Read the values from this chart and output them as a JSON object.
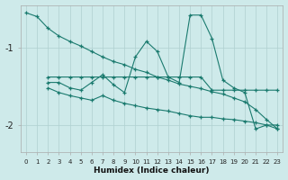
{
  "xlabel": "Humidex (Indice chaleur)",
  "background_color": "#ceeaea",
  "line_color": "#1a7a6e",
  "grid_color": "#afd0d0",
  "xlim": [
    -0.5,
    23.5
  ],
  "ylim": [
    -2.35,
    -0.45
  ],
  "yticks": [
    -2,
    -1
  ],
  "xticks": [
    0,
    1,
    2,
    3,
    4,
    5,
    6,
    7,
    8,
    9,
    10,
    11,
    12,
    13,
    14,
    15,
    16,
    17,
    18,
    19,
    20,
    21,
    22,
    23
  ],
  "s1_x": [
    0,
    1,
    2,
    3,
    4,
    5,
    6,
    7,
    8,
    9,
    10,
    11,
    12,
    13,
    14,
    15,
    16,
    17,
    18,
    19,
    20,
    21,
    22,
    23
  ],
  "s1_y": [
    -0.55,
    -0.6,
    -0.75,
    -0.85,
    -0.92,
    -0.98,
    -1.05,
    -1.12,
    -1.18,
    -1.22,
    -1.28,
    -1.32,
    -1.38,
    -1.42,
    -1.47,
    -1.5,
    -1.53,
    -1.57,
    -1.6,
    -1.65,
    -1.7,
    -1.8,
    -1.93,
    -2.05
  ],
  "s2_x": [
    2,
    3,
    4,
    5,
    6,
    7,
    8,
    9,
    10,
    11,
    12,
    13,
    14,
    15,
    16,
    17,
    18,
    19,
    20,
    21,
    22,
    23
  ],
  "s2_y": [
    -1.45,
    -1.45,
    -1.52,
    -1.55,
    -1.45,
    -1.35,
    -1.48,
    -1.58,
    -1.12,
    -0.92,
    -1.05,
    -1.38,
    -1.45,
    -0.58,
    -0.58,
    -0.88,
    -1.42,
    -1.52,
    -1.58,
    -2.05,
    -2.0,
    -2.0
  ],
  "s3_x": [
    2,
    3,
    4,
    5,
    6,
    7,
    8,
    9,
    10,
    11,
    12,
    13,
    14,
    15,
    16,
    17,
    18,
    19,
    20,
    21,
    22,
    23
  ],
  "s3_y": [
    -1.38,
    -1.38,
    -1.38,
    -1.38,
    -1.38,
    -1.38,
    -1.38,
    -1.38,
    -1.38,
    -1.38,
    -1.38,
    -1.38,
    -1.38,
    -1.38,
    -1.38,
    -1.55,
    -1.55,
    -1.55,
    -1.55,
    -1.55,
    -1.55,
    -1.55
  ],
  "s4_x": [
    2,
    3,
    4,
    5,
    6,
    7,
    8,
    9,
    10,
    11,
    12,
    13,
    14,
    15,
    16,
    17,
    18,
    19,
    20,
    21,
    22,
    23
  ],
  "s4_y": [
    -1.52,
    -1.58,
    -1.62,
    -1.65,
    -1.68,
    -1.62,
    -1.68,
    -1.72,
    -1.75,
    -1.78,
    -1.8,
    -1.82,
    -1.85,
    -1.88,
    -1.9,
    -1.9,
    -1.92,
    -1.93,
    -1.95,
    -1.97,
    -2.0,
    -2.05
  ]
}
